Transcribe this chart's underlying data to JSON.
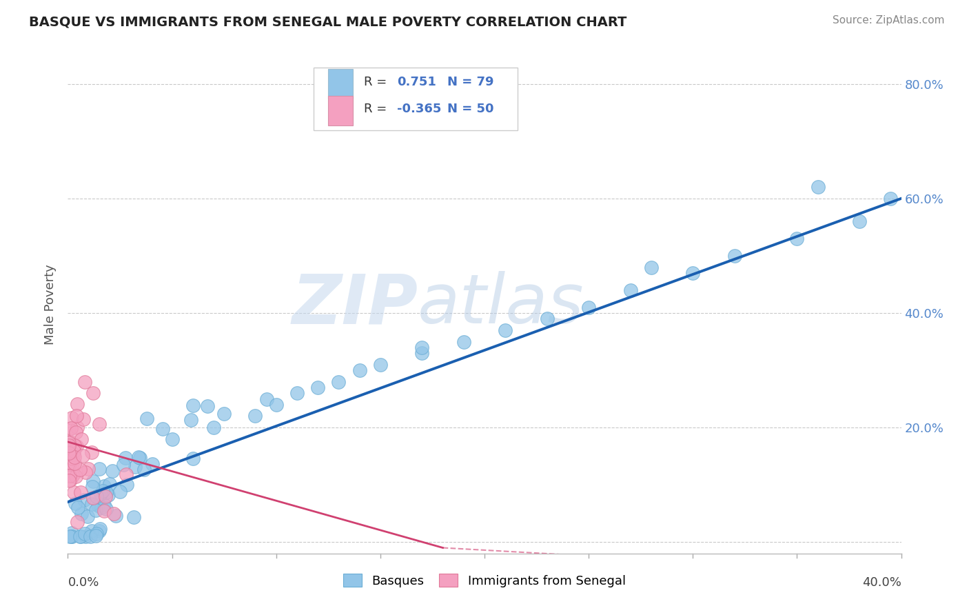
{
  "title": "BASQUE VS IMMIGRANTS FROM SENEGAL MALE POVERTY CORRELATION CHART",
  "source": "Source: ZipAtlas.com",
  "ylabel": "Male Poverty",
  "xlim": [
    0.0,
    0.4
  ],
  "ylim": [
    -0.02,
    0.85
  ],
  "yticks": [
    0.0,
    0.2,
    0.4,
    0.6,
    0.8
  ],
  "ytick_labels": [
    "",
    "20.0%",
    "40.0%",
    "60.0%",
    "80.0%"
  ],
  "xticks": [
    0.0,
    0.05,
    0.1,
    0.15,
    0.2,
    0.25,
    0.3,
    0.35,
    0.4
  ],
  "basque_color": "#92c5e8",
  "senegal_color": "#f4a0c0",
  "basque_edge": "#6aadd5",
  "senegal_edge": "#e07898",
  "basque_R": 0.751,
  "basque_N": 79,
  "senegal_R": -0.365,
  "senegal_N": 50,
  "trend_blue": "#1a5fb0",
  "trend_pink": "#d04070",
  "legend_color": "#4472c4",
  "background_color": "#ffffff",
  "grid_color": "#bbbbbb",
  "watermark_zip": "ZIP",
  "watermark_atlas": "atlas",
  "watermark_color_zip": "#d0dff0",
  "watermark_color_atlas": "#b0c8e8"
}
